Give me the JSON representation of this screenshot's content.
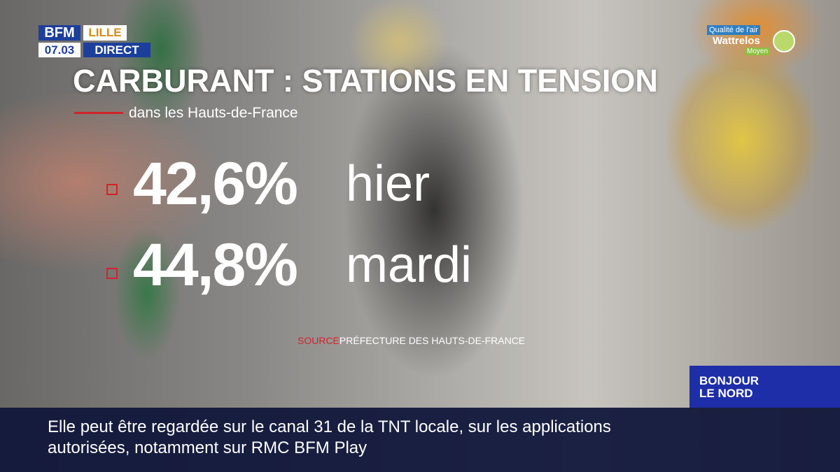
{
  "channel": {
    "brand": "BFM",
    "region": "LILLE",
    "time": "07.03",
    "live": "DIRECT"
  },
  "air_quality": {
    "label": "Qualité de l'air",
    "city": "Wattrelos",
    "level": "Moyen"
  },
  "headline": {
    "title": "CARBURANT : STATIONS EN TENSION",
    "subtitle": "dans les Hauts-de-France"
  },
  "stats": [
    {
      "value": "42,6%",
      "label": "hier"
    },
    {
      "value": "44,8%",
      "label": "mardi"
    }
  ],
  "source": {
    "label": "SOURCE",
    "text": "PRÉFECTURE DES HAUTS-DE-FRANCE"
  },
  "show": {
    "line1": "BONJOUR",
    "line2": "LE NORD"
  },
  "ticker": {
    "lines": [
      "Elle peut être regardée sur le canal 31 de la TNT locale, sur les applications",
      "autorisées, notamment sur RMC BFM Play"
    ]
  }
}
